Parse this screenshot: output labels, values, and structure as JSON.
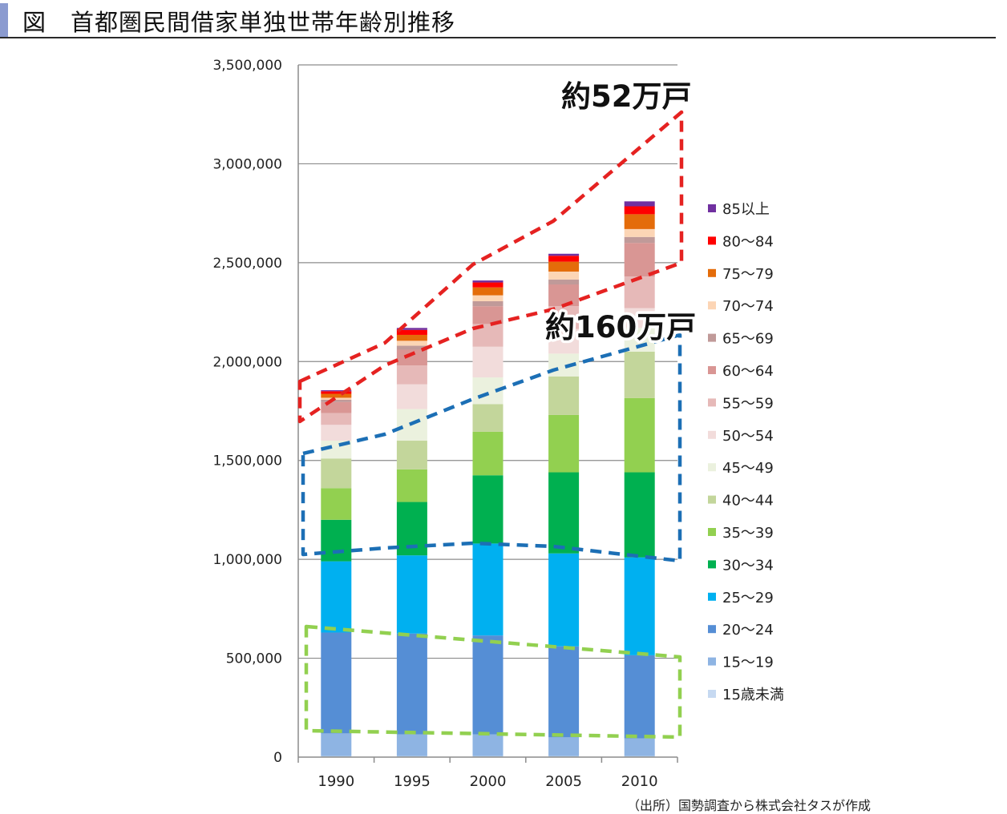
{
  "header": {
    "title": "図　首都圏民間借家単独世帯年齢別推移"
  },
  "source_note": "（出所）国勢調査から株式会社タスが作成",
  "annotations": {
    "top_group_label": "約52万戸",
    "middle_group_label": "約160万戸"
  },
  "chart_data": {
    "type": "bar",
    "stacked": true,
    "title": "",
    "xlabel": "",
    "ylabel": "",
    "categories": [
      "1990",
      "1995",
      "2000",
      "2005",
      "2010"
    ],
    "ylim": [
      0,
      3500000
    ],
    "y_ticks": [
      0,
      500000,
      1000000,
      1500000,
      2000000,
      2500000,
      3000000,
      3500000
    ],
    "y_tick_labels": [
      "0",
      "500,000",
      "1,000,000",
      "1,500,000",
      "2,000,000",
      "2,500,000",
      "3,000,000",
      "3,500,000"
    ],
    "grid": true,
    "legend_position": "right",
    "series": [
      {
        "name": "15歳未満",
        "color": "#c6d9f1",
        "values": [
          5000,
          5000,
          5000,
          5000,
          5000
        ]
      },
      {
        "name": "15～19",
        "color": "#8eb4e3",
        "values": [
          115000,
          110000,
          110000,
          95000,
          90000
        ]
      },
      {
        "name": "20～24",
        "color": "#558ed5",
        "values": [
          510000,
          510000,
          500000,
          460000,
          420000
        ]
      },
      {
        "name": "25～29",
        "color": "#00b0f0",
        "values": [
          360000,
          395000,
          465000,
          470000,
          495000
        ]
      },
      {
        "name": "30～34",
        "color": "#00b050",
        "values": [
          210000,
          270000,
          345000,
          410000,
          430000
        ]
      },
      {
        "name": "35～39",
        "color": "#92d050",
        "values": [
          160000,
          165000,
          220000,
          290000,
          375000
        ]
      },
      {
        "name": "40～44",
        "color": "#c3d69b",
        "values": [
          150000,
          145000,
          140000,
          195000,
          235000
        ]
      },
      {
        "name": "45～49",
        "color": "#ebf1de",
        "values": [
          90000,
          160000,
          135000,
          115000,
          120000
        ]
      },
      {
        "name": "50～54",
        "color": "#f2dcdb",
        "values": [
          80000,
          125000,
          155000,
          125000,
          100000
        ]
      },
      {
        "name": "55～59",
        "color": "#e6b9b8",
        "values": [
          60000,
          95000,
          115000,
          115000,
          160000
        ]
      },
      {
        "name": "60～64",
        "color": "#d99694",
        "values": [
          55000,
          80000,
          90000,
          110000,
          170000
        ]
      },
      {
        "name": "65～69",
        "color": "#c09a99",
        "values": [
          12000,
          20000,
          25000,
          25000,
          30000
        ]
      },
      {
        "name": "70～74",
        "color": "#fcd5b5",
        "values": [
          10000,
          25000,
          30000,
          40000,
          40000
        ]
      },
      {
        "name": "75～79",
        "color": "#e46c0a",
        "values": [
          20000,
          30000,
          40000,
          50000,
          75000
        ]
      },
      {
        "name": "80～84",
        "color": "#ff0000",
        "values": [
          13000,
          25000,
          25000,
          30000,
          40000
        ]
      },
      {
        "name": "85以上",
        "color": "#7030a0",
        "values": [
          5000,
          10000,
          10000,
          10000,
          25000
        ]
      }
    ]
  }
}
